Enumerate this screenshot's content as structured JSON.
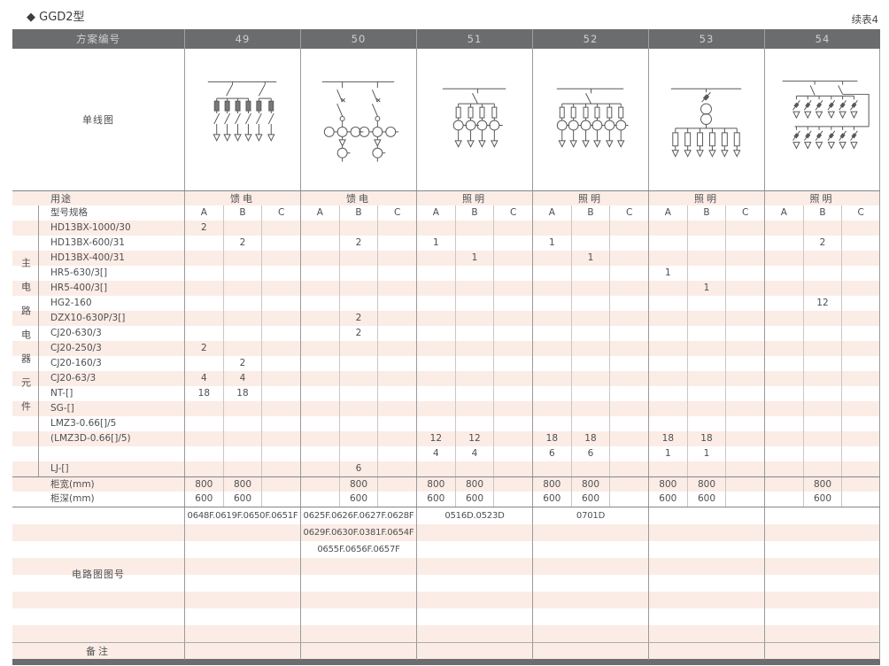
{
  "page": {
    "title": "◆ GGD2型",
    "continuation": "续表4"
  },
  "header": {
    "label": "方案编号",
    "schemes": [
      "49",
      "50",
      "51",
      "52",
      "53",
      "54"
    ]
  },
  "diagram": {
    "label": "单线图"
  },
  "usage": {
    "label": "用途",
    "values": [
      "馈电",
      "馈电",
      "照明",
      "照明",
      "照明",
      "照明"
    ]
  },
  "spec": {
    "label": "型号规格",
    "sub_columns": [
      "A",
      "B",
      "C"
    ]
  },
  "left_group_label": "主电路电器元件",
  "components": [
    {
      "label": "HD13BX-1000/30",
      "values": [
        "2",
        "",
        "",
        "",
        "",
        "",
        "",
        "",
        "",
        "",
        "",
        "",
        "",
        "",
        "",
        "",
        "",
        ""
      ]
    },
    {
      "label": "HD13BX-600/31",
      "values": [
        "",
        "2",
        "",
        "",
        "2",
        "",
        "1",
        "",
        "",
        "1",
        "",
        "",
        "",
        "",
        "",
        "",
        "2",
        ""
      ]
    },
    {
      "label": "HD13BX-400/31",
      "values": [
        "",
        "",
        "",
        "",
        "",
        "",
        "",
        "1",
        "",
        "",
        "1",
        "",
        "",
        "",
        "",
        "",
        "",
        ""
      ]
    },
    {
      "label": "HR5-630/3[]",
      "values": [
        "",
        "",
        "",
        "",
        "",
        "",
        "",
        "",
        "",
        "",
        "",
        "",
        "1",
        "",
        "",
        "",
        "",
        ""
      ]
    },
    {
      "label": "HR5-400/3[]",
      "values": [
        "",
        "",
        "",
        "",
        "",
        "",
        "",
        "",
        "",
        "",
        "",
        "",
        "",
        "1",
        "",
        "",
        "",
        ""
      ]
    },
    {
      "label": "HG2-160",
      "values": [
        "",
        "",
        "",
        "",
        "",
        "",
        "",
        "",
        "",
        "",
        "",
        "",
        "",
        "",
        "",
        "",
        "12",
        ""
      ]
    },
    {
      "label": "DZX10-630P/3[]",
      "values": [
        "",
        "",
        "",
        "",
        "2",
        "",
        "",
        "",
        "",
        "",
        "",
        "",
        "",
        "",
        "",
        "",
        "",
        ""
      ]
    },
    {
      "label": "CJ20-630/3",
      "values": [
        "",
        "",
        "",
        "",
        "2",
        "",
        "",
        "",
        "",
        "",
        "",
        "",
        "",
        "",
        "",
        "",
        "",
        ""
      ]
    },
    {
      "label": "CJ20-250/3",
      "values": [
        "2",
        "",
        "",
        "",
        "",
        "",
        "",
        "",
        "",
        "",
        "",
        "",
        "",
        "",
        "",
        "",
        "",
        ""
      ]
    },
    {
      "label": "CJ20-160/3",
      "values": [
        "",
        "2",
        "",
        "",
        "",
        "",
        "",
        "",
        "",
        "",
        "",
        "",
        "",
        "",
        "",
        "",
        "",
        ""
      ]
    },
    {
      "label": "CJ20-63/3",
      "values": [
        "4",
        "4",
        "",
        "",
        "",
        "",
        "",
        "",
        "",
        "",
        "",
        "",
        "",
        "",
        "",
        "",
        "",
        ""
      ]
    },
    {
      "label": "NT-[]",
      "values": [
        "18",
        "18",
        "",
        "",
        "",
        "",
        "",
        "",
        "",
        "",
        "",
        "",
        "",
        "",
        "",
        "",
        "",
        ""
      ]
    },
    {
      "label": "SG-[]",
      "values": [
        "",
        "",
        "",
        "",
        "",
        "",
        "",
        "",
        "",
        "",
        "",
        "",
        "",
        "",
        "",
        "",
        "",
        ""
      ]
    },
    {
      "label": "LMZ3-0.66[]/5",
      "values": [
        "",
        "",
        "",
        "",
        "",
        "",
        "",
        "",
        "",
        "",
        "",
        "",
        "",
        "",
        "",
        "",
        "",
        ""
      ]
    },
    {
      "label": "(LMZ3D-0.66[]/5)",
      "values": [
        "",
        "",
        "",
        "",
        "",
        "",
        "12",
        "12",
        "",
        "18",
        "18",
        "",
        "18",
        "18",
        "",
        "",
        "",
        ""
      ]
    },
    {
      "label": "",
      "values": [
        "",
        "",
        "",
        "",
        "",
        "",
        "4",
        "4",
        "",
        "6",
        "6",
        "",
        "1",
        "1",
        "",
        "",
        "",
        ""
      ]
    },
    {
      "label": "LJ-[]",
      "values": [
        "",
        "",
        "",
        "",
        "6",
        "",
        "",
        "",
        "",
        "",
        "",
        "",
        "",
        "",
        "",
        "",
        "",
        ""
      ]
    }
  ],
  "cabinet": {
    "width": {
      "label": "柜宽(mm)",
      "values": [
        "800",
        "800",
        "",
        "",
        "800",
        "",
        "800",
        "800",
        "",
        "800",
        "800",
        "",
        "800",
        "800",
        "",
        "",
        "800",
        ""
      ]
    },
    "depth": {
      "label": "柜深(mm)",
      "values": [
        "600",
        "600",
        "",
        "",
        "600",
        "",
        "600",
        "600",
        "",
        "600",
        "600",
        "",
        "600",
        "600",
        "",
        "",
        "600",
        ""
      ]
    }
  },
  "circuit": {
    "label": "电路图图号",
    "rows": [
      [
        "0648F.0619F.0650F.0651F",
        "0625F.0626F.0627F.0628F",
        "0516D.0523D",
        "0701D",
        "",
        ""
      ],
      [
        "",
        "0629F.0630F.0381F.0654F",
        "",
        "",
        "",
        ""
      ],
      [
        "",
        "0655F.0656F.0657F",
        "",
        "",
        "",
        ""
      ],
      [
        "",
        "",
        "",
        "",
        "",
        ""
      ],
      [
        "",
        "",
        "",
        "",
        "",
        ""
      ],
      [
        "",
        "",
        "",
        "",
        "",
        ""
      ],
      [
        "",
        "",
        "",
        "",
        "",
        ""
      ],
      [
        "",
        "",
        "",
        "",
        "",
        ""
      ]
    ]
  },
  "remark": {
    "label": "备注"
  },
  "colors": {
    "header_bg": "#6b6c6e",
    "header_text": "#ced0d1",
    "stripe_pink": "#fcece6",
    "text": "#4e4f51",
    "line_main": "#9a9a9a",
    "line_sub": "#cac6c4",
    "diagram_stroke": "#58585a"
  }
}
